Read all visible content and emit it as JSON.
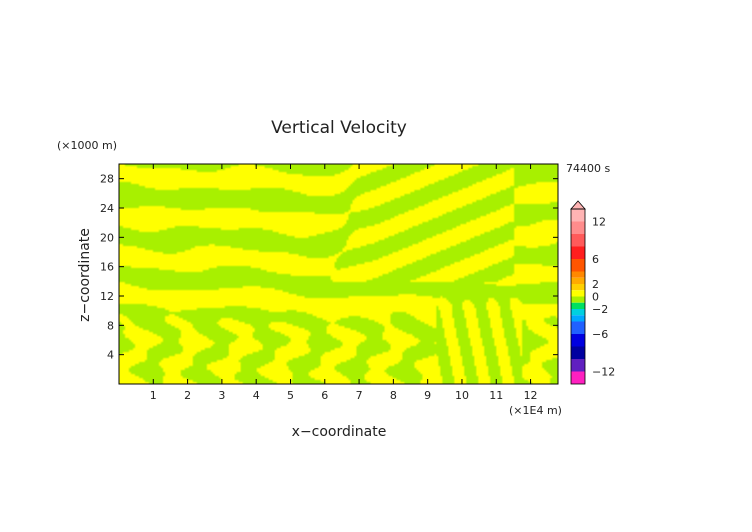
{
  "chart_data": {
    "type": "heatmap",
    "title": "Vertical Velocity",
    "xlabel": "x−coordinate",
    "ylabel": "z−coordinate",
    "x_unit": "(×1E4 m)",
    "y_unit": "(×1000 m)",
    "time_label": "74400 s",
    "xlim": [
      0,
      12.8
    ],
    "ylim": [
      0,
      30
    ],
    "x_ticks": [
      "1",
      "2",
      "3",
      "4",
      "5",
      "6",
      "7",
      "8",
      "9",
      "10",
      "11",
      "12"
    ],
    "y_ticks": [
      "4",
      "8",
      "12",
      "16",
      "20",
      "24",
      "28"
    ],
    "colorbar": {
      "tick_labels": [
        "12",
        "6",
        "2",
        "0",
        "−2",
        "−6",
        "−12"
      ],
      "tick_values": [
        12,
        6,
        2,
        0,
        -2,
        -6,
        -12
      ],
      "range": [
        -14,
        14
      ]
    },
    "field_colors": {
      "positive": "#ffff00",
      "negative": "#a8f000"
    }
  }
}
